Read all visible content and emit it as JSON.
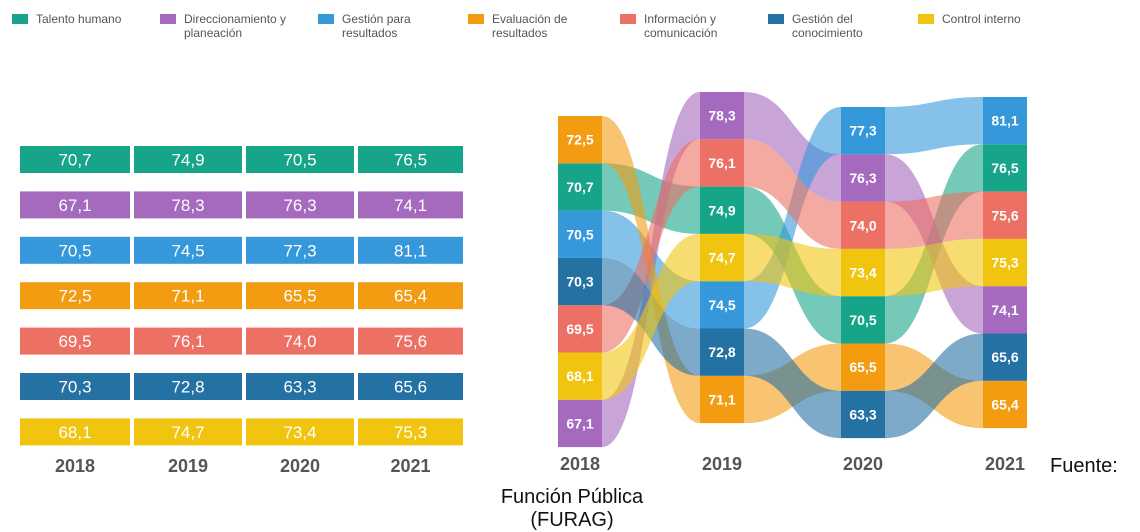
{
  "chart_data": {
    "type": "bump",
    "categories": [
      "2018",
      "2019",
      "2020",
      "2021"
    ],
    "series": [
      {
        "name": "Talento humano",
        "color": "#17a589",
        "values": [
          70.7,
          74.9,
          70.5,
          76.5
        ],
        "value_labels": [
          "70,7",
          "74,9",
          "70,5",
          "76,5"
        ]
      },
      {
        "name": "Direccionamiento y planeación",
        "color": "#a569bd",
        "values": [
          67.1,
          78.3,
          76.3,
          74.1
        ],
        "value_labels": [
          "67,1",
          "78,3",
          "76,3",
          "74,1"
        ]
      },
      {
        "name": "Gestión para resultados",
        "color": "#3498db",
        "values": [
          70.5,
          74.5,
          77.3,
          81.1
        ],
        "value_labels": [
          "70,5",
          "74,5",
          "77,3",
          "81,1"
        ]
      },
      {
        "name": "Evaluación de resultados",
        "color": "#f39c12",
        "values": [
          72.5,
          71.1,
          65.5,
          65.4
        ],
        "value_labels": [
          "72,5",
          "71,1",
          "65,5",
          "65,4"
        ]
      },
      {
        "name": "Información y comunicación",
        "color": "#ec7063",
        "values": [
          69.5,
          76.1,
          74.0,
          75.6
        ],
        "value_labels": [
          "69,5",
          "76,1",
          "74,0",
          "75,6"
        ]
      },
      {
        "name": "Gestión del conocimiento",
        "color": "#2471a3",
        "values": [
          70.3,
          72.8,
          63.3,
          65.6
        ],
        "value_labels": [
          "70,3",
          "72,8",
          "63,3",
          "65,6"
        ]
      },
      {
        "name": "Control interno",
        "color": "#f1c40f",
        "values": [
          68.1,
          74.7,
          73.4,
          75.3
        ],
        "value_labels": [
          "68,1",
          "74,7",
          "73,4",
          "75,3"
        ]
      }
    ],
    "source": [
      "Fuente:",
      "Función Pública (FURAG)"
    ]
  }
}
